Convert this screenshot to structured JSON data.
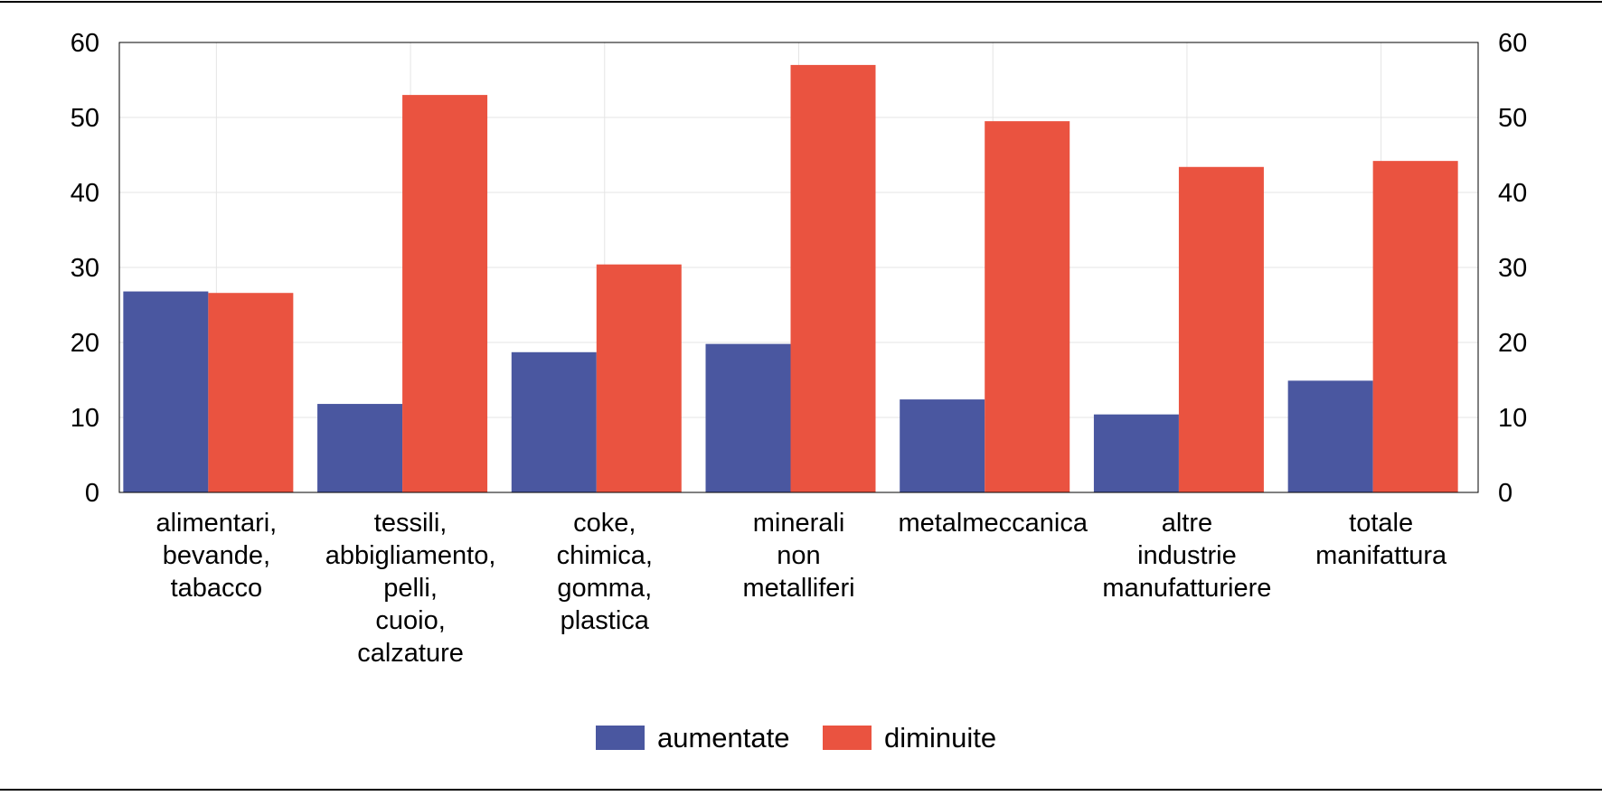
{
  "chart_data": {
    "type": "bar",
    "title": "",
    "xlabel": "",
    "ylabel": "",
    "ylim": [
      0,
      60
    ],
    "yticks": [
      "0",
      "10",
      "20",
      "30",
      "40",
      "50",
      "60"
    ],
    "categories": [
      [
        "alimentari,",
        "bevande,",
        "tabacco"
      ],
      [
        "tessili,",
        "abbigliamento,",
        "pelli,",
        "cuoio,",
        "calzature"
      ],
      [
        "coke,",
        "chimica,",
        "gomma,",
        "plastica"
      ],
      [
        "minerali",
        "non",
        "metalliferi"
      ],
      [
        "metalmeccanica"
      ],
      [
        "altre",
        "industrie",
        "manufatturiere"
      ],
      [
        "totale",
        "manifattura"
      ]
    ],
    "series": [
      {
        "name": "aumentate",
        "color": "#4a57a0",
        "values": [
          26.8,
          11.8,
          18.7,
          19.8,
          12.4,
          10.4,
          14.9
        ]
      },
      {
        "name": "diminuite",
        "color": "#ea5340",
        "values": [
          26.6,
          53.0,
          30.4,
          57.0,
          49.5,
          43.4,
          44.2
        ]
      }
    ],
    "legend": "bottom-center",
    "grid": true
  }
}
